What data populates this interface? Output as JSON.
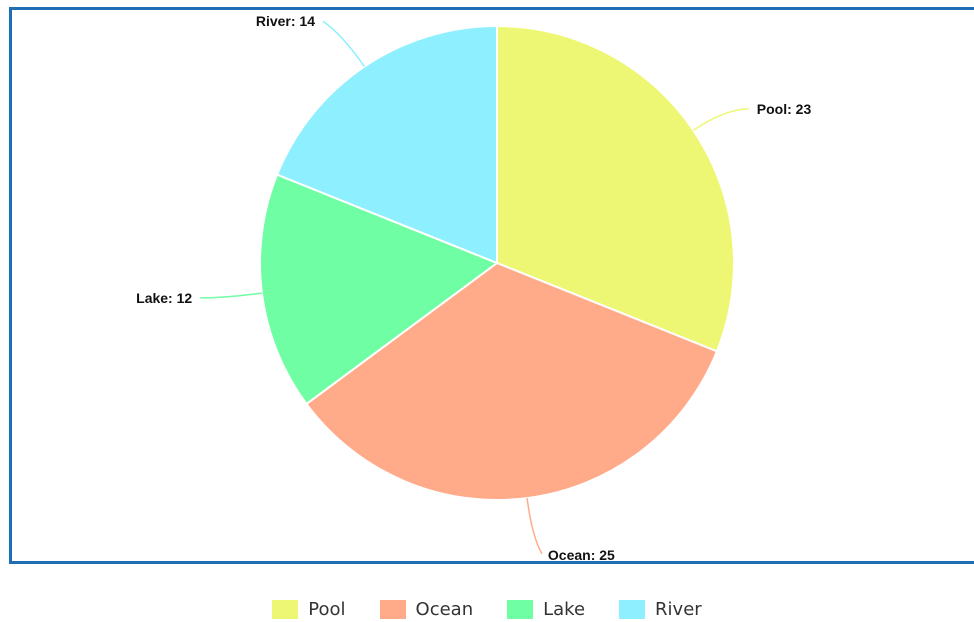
{
  "chart_data": {
    "type": "pie",
    "title": "",
    "categories": [
      "Pool",
      "Ocean",
      "Lake",
      "River"
    ],
    "values": [
      23,
      25,
      12,
      14
    ],
    "slice_labels": [
      "Pool: 23",
      "Ocean: 25",
      "Lake: 12",
      "River: 14"
    ],
    "colors": [
      "#eef774",
      "#ffab8a",
      "#6ffea3",
      "#8ef0ff"
    ],
    "start_angle": "12 o'clock",
    "direction": "clockwise",
    "legend": {
      "position": "bottom-center",
      "entries": [
        "Pool",
        "Ocean",
        "Lake",
        "River"
      ]
    }
  },
  "frame": {
    "border_color": "#1f6eb5"
  }
}
